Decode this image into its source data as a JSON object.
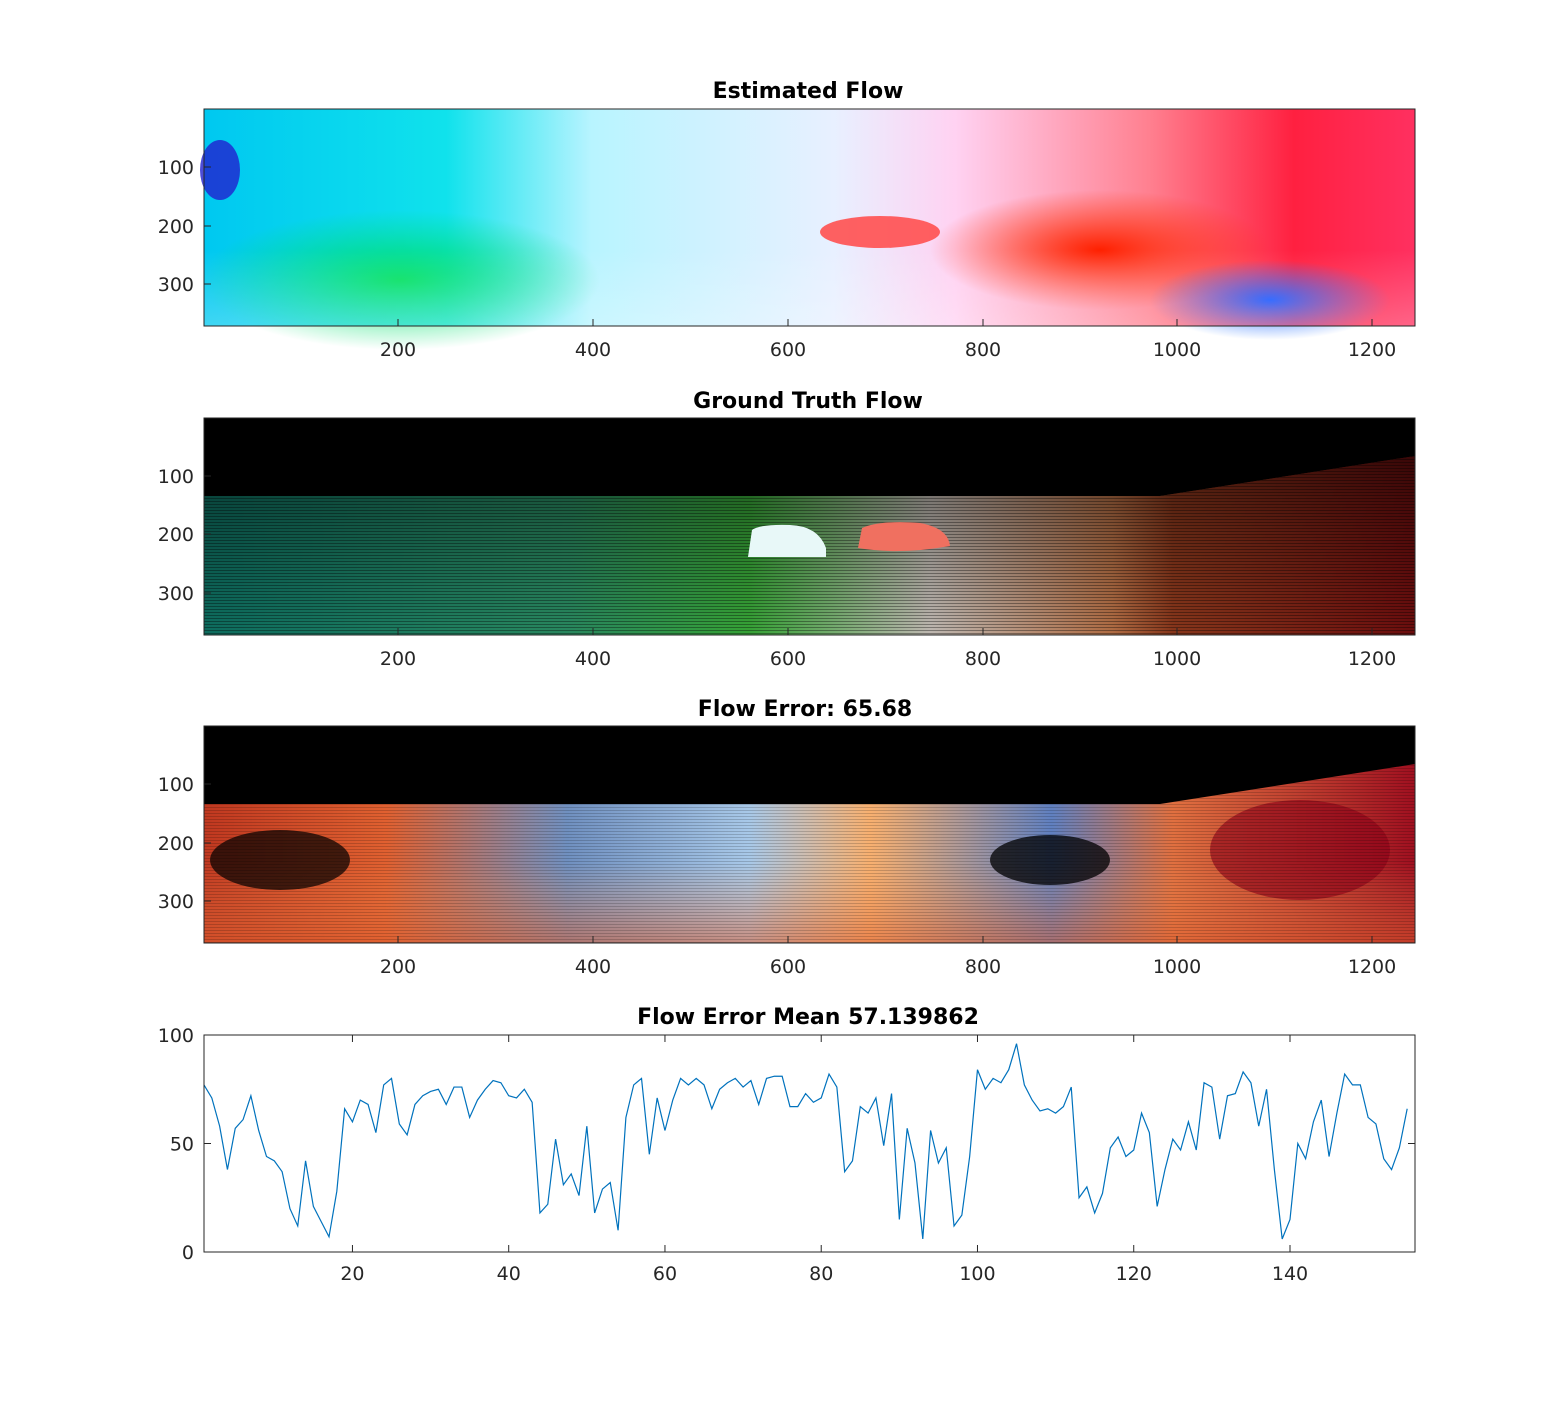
{
  "figure": {
    "panels": [
      {
        "title": "Estimated Flow",
        "kind": "image",
        "xticks": [
          "200",
          "400",
          "600",
          "800",
          "1000",
          "1200"
        ],
        "yticks": [
          "100",
          "200",
          "300"
        ]
      },
      {
        "title": "Ground Truth Flow",
        "kind": "image",
        "xticks": [
          "200",
          "400",
          "600",
          "800",
          "1000",
          "1200"
        ],
        "yticks": [
          "100",
          "200",
          "300"
        ]
      },
      {
        "title": "Flow Error: 65.68",
        "kind": "image",
        "xticks": [
          "200",
          "400",
          "600",
          "800",
          "1000",
          "1200"
        ],
        "yticks": [
          "100",
          "200",
          "300"
        ]
      },
      {
        "title": "Flow Error Mean 57.139862",
        "kind": "line",
        "xticks": [
          "20",
          "40",
          "60",
          "80",
          "100",
          "120",
          "140"
        ],
        "yticks": [
          "0",
          "50",
          "100"
        ]
      }
    ]
  },
  "chart_data": [
    {
      "type": "heatmap",
      "title": "Estimated Flow",
      "xlim": [
        1,
        1242
      ],
      "ylim": [
        1,
        375
      ],
      "y_reversed": true,
      "xticks": [
        200,
        400,
        600,
        800,
        1000,
        1200
      ],
      "yticks": [
        100,
        200,
        300
      ]
    },
    {
      "type": "heatmap",
      "title": "Ground Truth Flow",
      "xlim": [
        1,
        1242
      ],
      "ylim": [
        1,
        375
      ],
      "y_reversed": true,
      "xticks": [
        200,
        400,
        600,
        800,
        1000,
        1200
      ],
      "yticks": [
        100,
        200,
        300
      ]
    },
    {
      "type": "heatmap",
      "title": "Flow Error: 65.68",
      "xlim": [
        1,
        1242
      ],
      "ylim": [
        1,
        375
      ],
      "y_reversed": true,
      "xticks": [
        200,
        400,
        600,
        800,
        1000,
        1200
      ],
      "yticks": [
        100,
        200,
        300
      ]
    },
    {
      "type": "line",
      "title": "Flow Error Mean 57.139862",
      "xlim": [
        1,
        156
      ],
      "ylim": [
        0,
        100
      ],
      "xticks": [
        20,
        40,
        60,
        80,
        100,
        120,
        140
      ],
      "yticks": [
        0,
        50,
        100
      ],
      "color": "#0072bd",
      "grid": false,
      "series": [
        {
          "values": [
            77,
            71,
            58,
            38,
            57,
            61,
            72,
            56,
            44,
            42,
            37,
            20,
            12,
            42,
            21,
            14,
            7,
            28,
            66,
            60,
            70,
            68,
            55,
            77,
            80,
            59,
            54,
            68,
            72,
            74,
            75,
            68,
            76,
            76,
            62,
            70,
            75,
            79,
            78,
            72,
            71,
            75,
            69,
            18,
            22,
            52,
            31,
            36,
            26,
            58,
            18,
            29,
            32,
            10,
            62,
            77,
            80,
            45,
            71,
            56,
            70,
            80,
            77,
            80,
            77,
            66,
            75,
            78,
            80,
            76,
            79,
            68,
            80,
            81,
            81,
            67,
            67,
            73,
            69,
            71,
            82,
            76,
            37,
            42,
            67,
            64,
            71,
            49,
            73,
            15,
            57,
            41,
            6,
            56,
            41,
            48,
            12,
            17,
            44,
            84,
            75,
            80,
            78,
            84,
            96,
            77,
            70,
            65,
            66,
            64,
            67,
            76,
            25,
            30,
            18,
            27,
            48,
            53,
            44,
            47,
            64,
            55,
            21,
            38,
            52,
            47,
            60,
            47,
            78,
            76,
            52,
            72,
            73,
            83,
            78,
            58,
            75,
            38,
            6,
            15,
            50,
            43,
            60,
            70,
            44,
            64,
            82,
            77,
            77,
            62,
            59,
            43,
            38,
            48,
            66
          ]
        }
      ]
    }
  ]
}
